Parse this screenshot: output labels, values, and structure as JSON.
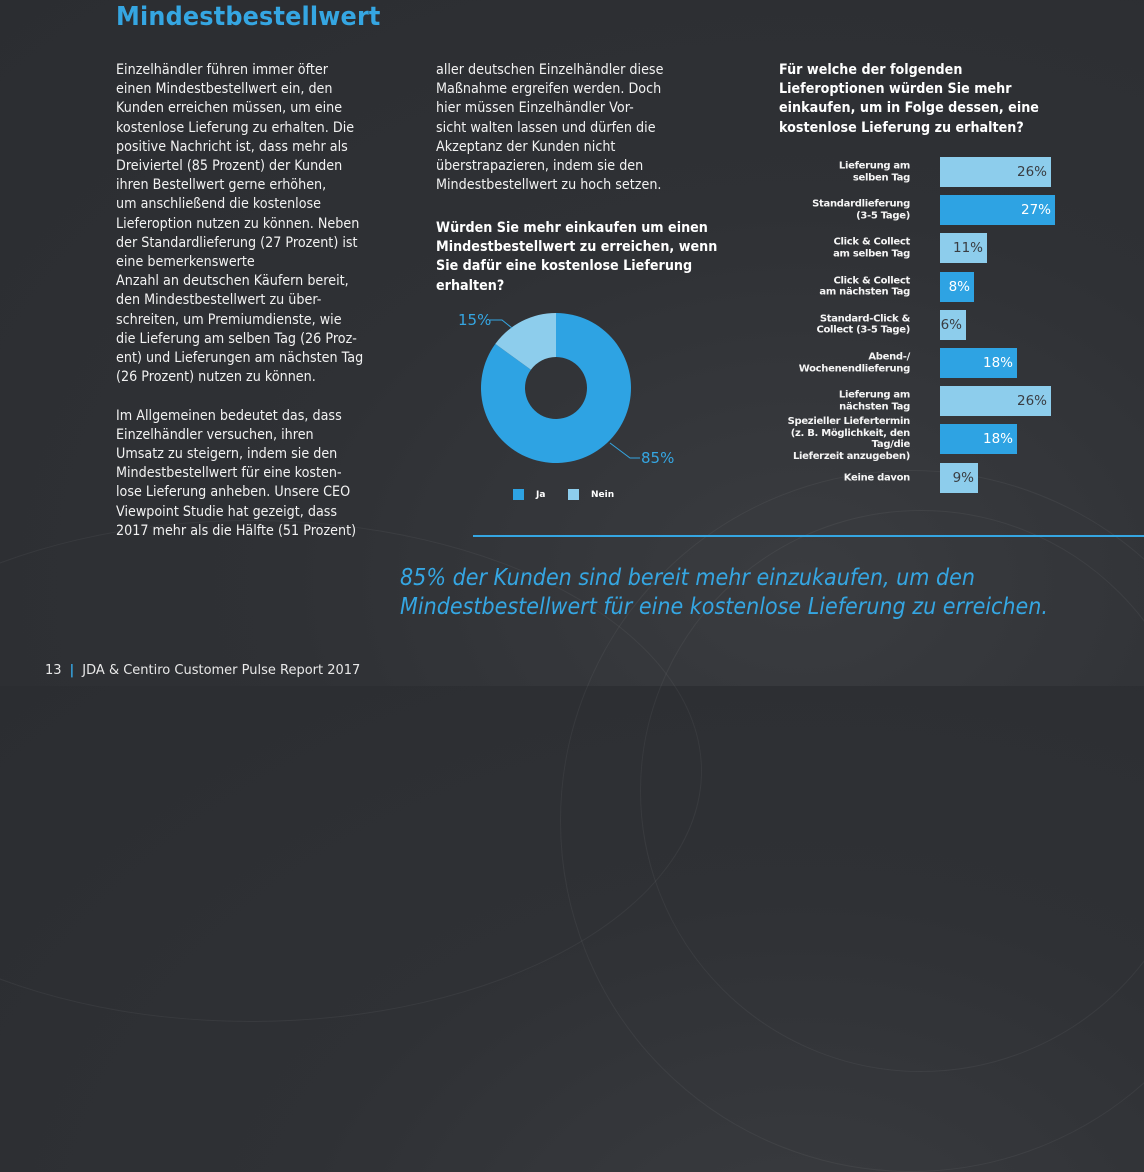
{
  "page": {
    "title": "Mindestbestellwert",
    "column1_text": "Einzelhändler führen immer öfter\neinen Mindestbestellwert ein, den\nKunden erreichen müssen, um eine\nkostenlose Lieferung zu erhalten. Die\npositive Nachricht ist, dass mehr als\nDreiviertel (85 Prozent) der Kunden\nihren Bestellwert gerne erhöhen,\num anschließend die kostenlose\nLieferoption nutzen zu können. Neben\nder Standardlieferung (27 Prozent) ist\neine bemerkenswerte\nAnzahl an deutschen Käufern bereit,\nden Mindestbestellwert zu über-\nschreiten, um Premiumdienste, wie\ndie Lieferung am selben Tag (26 Proz-\nent) und Lieferungen am nächsten Tag\n(26 Prozent) nutzen zu können.\n\nIm Allgemeinen bedeutet das, dass\nEinzelhändler versuchen, ihren\nUmsatz zu steigern, indem sie den\nMindestbestellwert für eine kosten-\nlose Lieferung anheben. Unsere CEO\nViewpoint Studie hat gezeigt, dass\n2017 mehr als die Hälfte (51 Prozent)",
    "column2_text": "aller deutschen Einzelhändler diese\nMaßnahme ergreifen werden. Doch\nhier müssen Einzelhändler Vor-\nsicht walten lassen und dürfen die\nAkzeptanz der Kunden nicht\nüberstrapazieren, indem sie den\nMindestbestellwert zu hoch setzen.",
    "quote": "85% der Kunden sind bereit mehr einzukaufen, um den\nMindestbestellwert für eine kostenlose Lieferung zu erreichen.",
    "footer": {
      "page_number": "13",
      "separator": "|",
      "report_title": "JDA & Centiro Customer Pulse Report 2017"
    },
    "colors": {
      "accent": "#35a6e2",
      "bar_dark": "#2ea3e3",
      "bar_light": "#8dcdec",
      "background": "#2e3034"
    }
  },
  "chart_data": [
    {
      "type": "pie",
      "variant": "donut",
      "title": "Würden Sie mehr einkaufen um einen\nMindestbestellwert zu erreichen, wenn\nSie  dafür eine kostenlose Lieferung\nerhalten?",
      "categories": [
        "Ja",
        "Nein"
      ],
      "values": [
        85,
        15
      ],
      "data_labels": [
        "85%",
        "15%"
      ],
      "colors": [
        "#2ea3e3",
        "#8dcdec"
      ],
      "legend": "bottom"
    },
    {
      "type": "bar",
      "orientation": "horizontal",
      "title": "Für welche der folgenden\nLieferoptionen würden Sie mehr\neinkaufen, um in Folge dessen, eine\nkostenlose Lieferung zu erhalten?",
      "categories": [
        "Lieferung am\nselben Tag",
        "Standardlieferung\n(3-5 Tage)",
        "Click & Collect\nam selben Tag",
        "Click & Collect\nam nächsten Tag",
        "Standard-Click &\nCollect (3-5 Tage)",
        "Abend-/\nWochenendlieferung",
        "Lieferung am\nnächsten Tag",
        "Spezieller Liefertermin\n(z. B. Möglichkeit, den Tag/die\nLieferzeit anzugeben)",
        "Keine davon"
      ],
      "values": [
        26,
        27,
        11,
        8,
        6,
        18,
        26,
        18,
        9
      ],
      "data_labels": [
        "26%",
        "27%",
        "11%",
        "8%",
        "6%",
        "18%",
        "26%",
        "18%",
        "9%"
      ],
      "shades": [
        "light",
        "dark",
        "light",
        "dark",
        "light",
        "dark",
        "light",
        "dark",
        "light"
      ],
      "xlim": [
        0,
        30
      ],
      "unit": "%"
    }
  ]
}
